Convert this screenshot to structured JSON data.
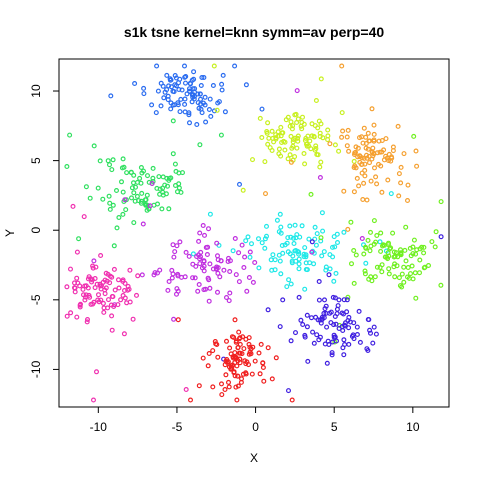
{
  "chart_data": {
    "type": "scatter",
    "title": "s1k tsne kernel=knn symm=av perp=40",
    "xlabel": "X",
    "ylabel": "Y",
    "xlim": [
      -12.5,
      12.3
    ],
    "ylim": [
      -12.7,
      12.3
    ],
    "xticks": [
      -10,
      -5,
      0,
      5,
      10
    ],
    "yticks": [
      -10,
      -5,
      0,
      5,
      10
    ],
    "xtick_labels": [
      "-10",
      "-5",
      "0",
      "5",
      "10"
    ],
    "ytick_labels": [
      "-10",
      "-5",
      "0",
      "5",
      "10"
    ],
    "grid": false,
    "legend": "none",
    "clusters": [
      {
        "color": "#2a6cf0",
        "cx": -4.5,
        "cy": 9.6,
        "sx": 1.2,
        "sy": 0.9,
        "n": 100
      },
      {
        "color": "#c8f020",
        "cx": 2.5,
        "cy": 6.6,
        "sx": 1.2,
        "sy": 0.95,
        "n": 100
      },
      {
        "color": "#f5a030",
        "cx": 7.4,
        "cy": 5.3,
        "sx": 1.1,
        "sy": 1.2,
        "n": 100
      },
      {
        "color": "#30e060",
        "cx": -7.3,
        "cy": 3.0,
        "sx": 1.4,
        "sy": 1.1,
        "n": 100
      },
      {
        "color": "#20e8e8",
        "cx": 2.6,
        "cy": -1.3,
        "sx": 1.5,
        "sy": 1.2,
        "n": 100
      },
      {
        "color": "#70f020",
        "cx": 9.0,
        "cy": -2.0,
        "sx": 1.1,
        "sy": 1.1,
        "n": 100
      },
      {
        "color": "#c030e0",
        "cx": -3.0,
        "cy": -2.5,
        "sx": 1.5,
        "sy": 1.2,
        "n": 100
      },
      {
        "color": "#f030b0",
        "cx": -9.9,
        "cy": -4.4,
        "sx": 1.1,
        "sy": 1.1,
        "n": 100
      },
      {
        "color": "#4020e0",
        "cx": 5.0,
        "cy": -7.0,
        "sx": 1.2,
        "sy": 1.1,
        "n": 100
      },
      {
        "color": "#f02020",
        "cx": -1.1,
        "cy": -9.3,
        "sx": 1.0,
        "sy": 1.1,
        "n": 100
      }
    ]
  }
}
